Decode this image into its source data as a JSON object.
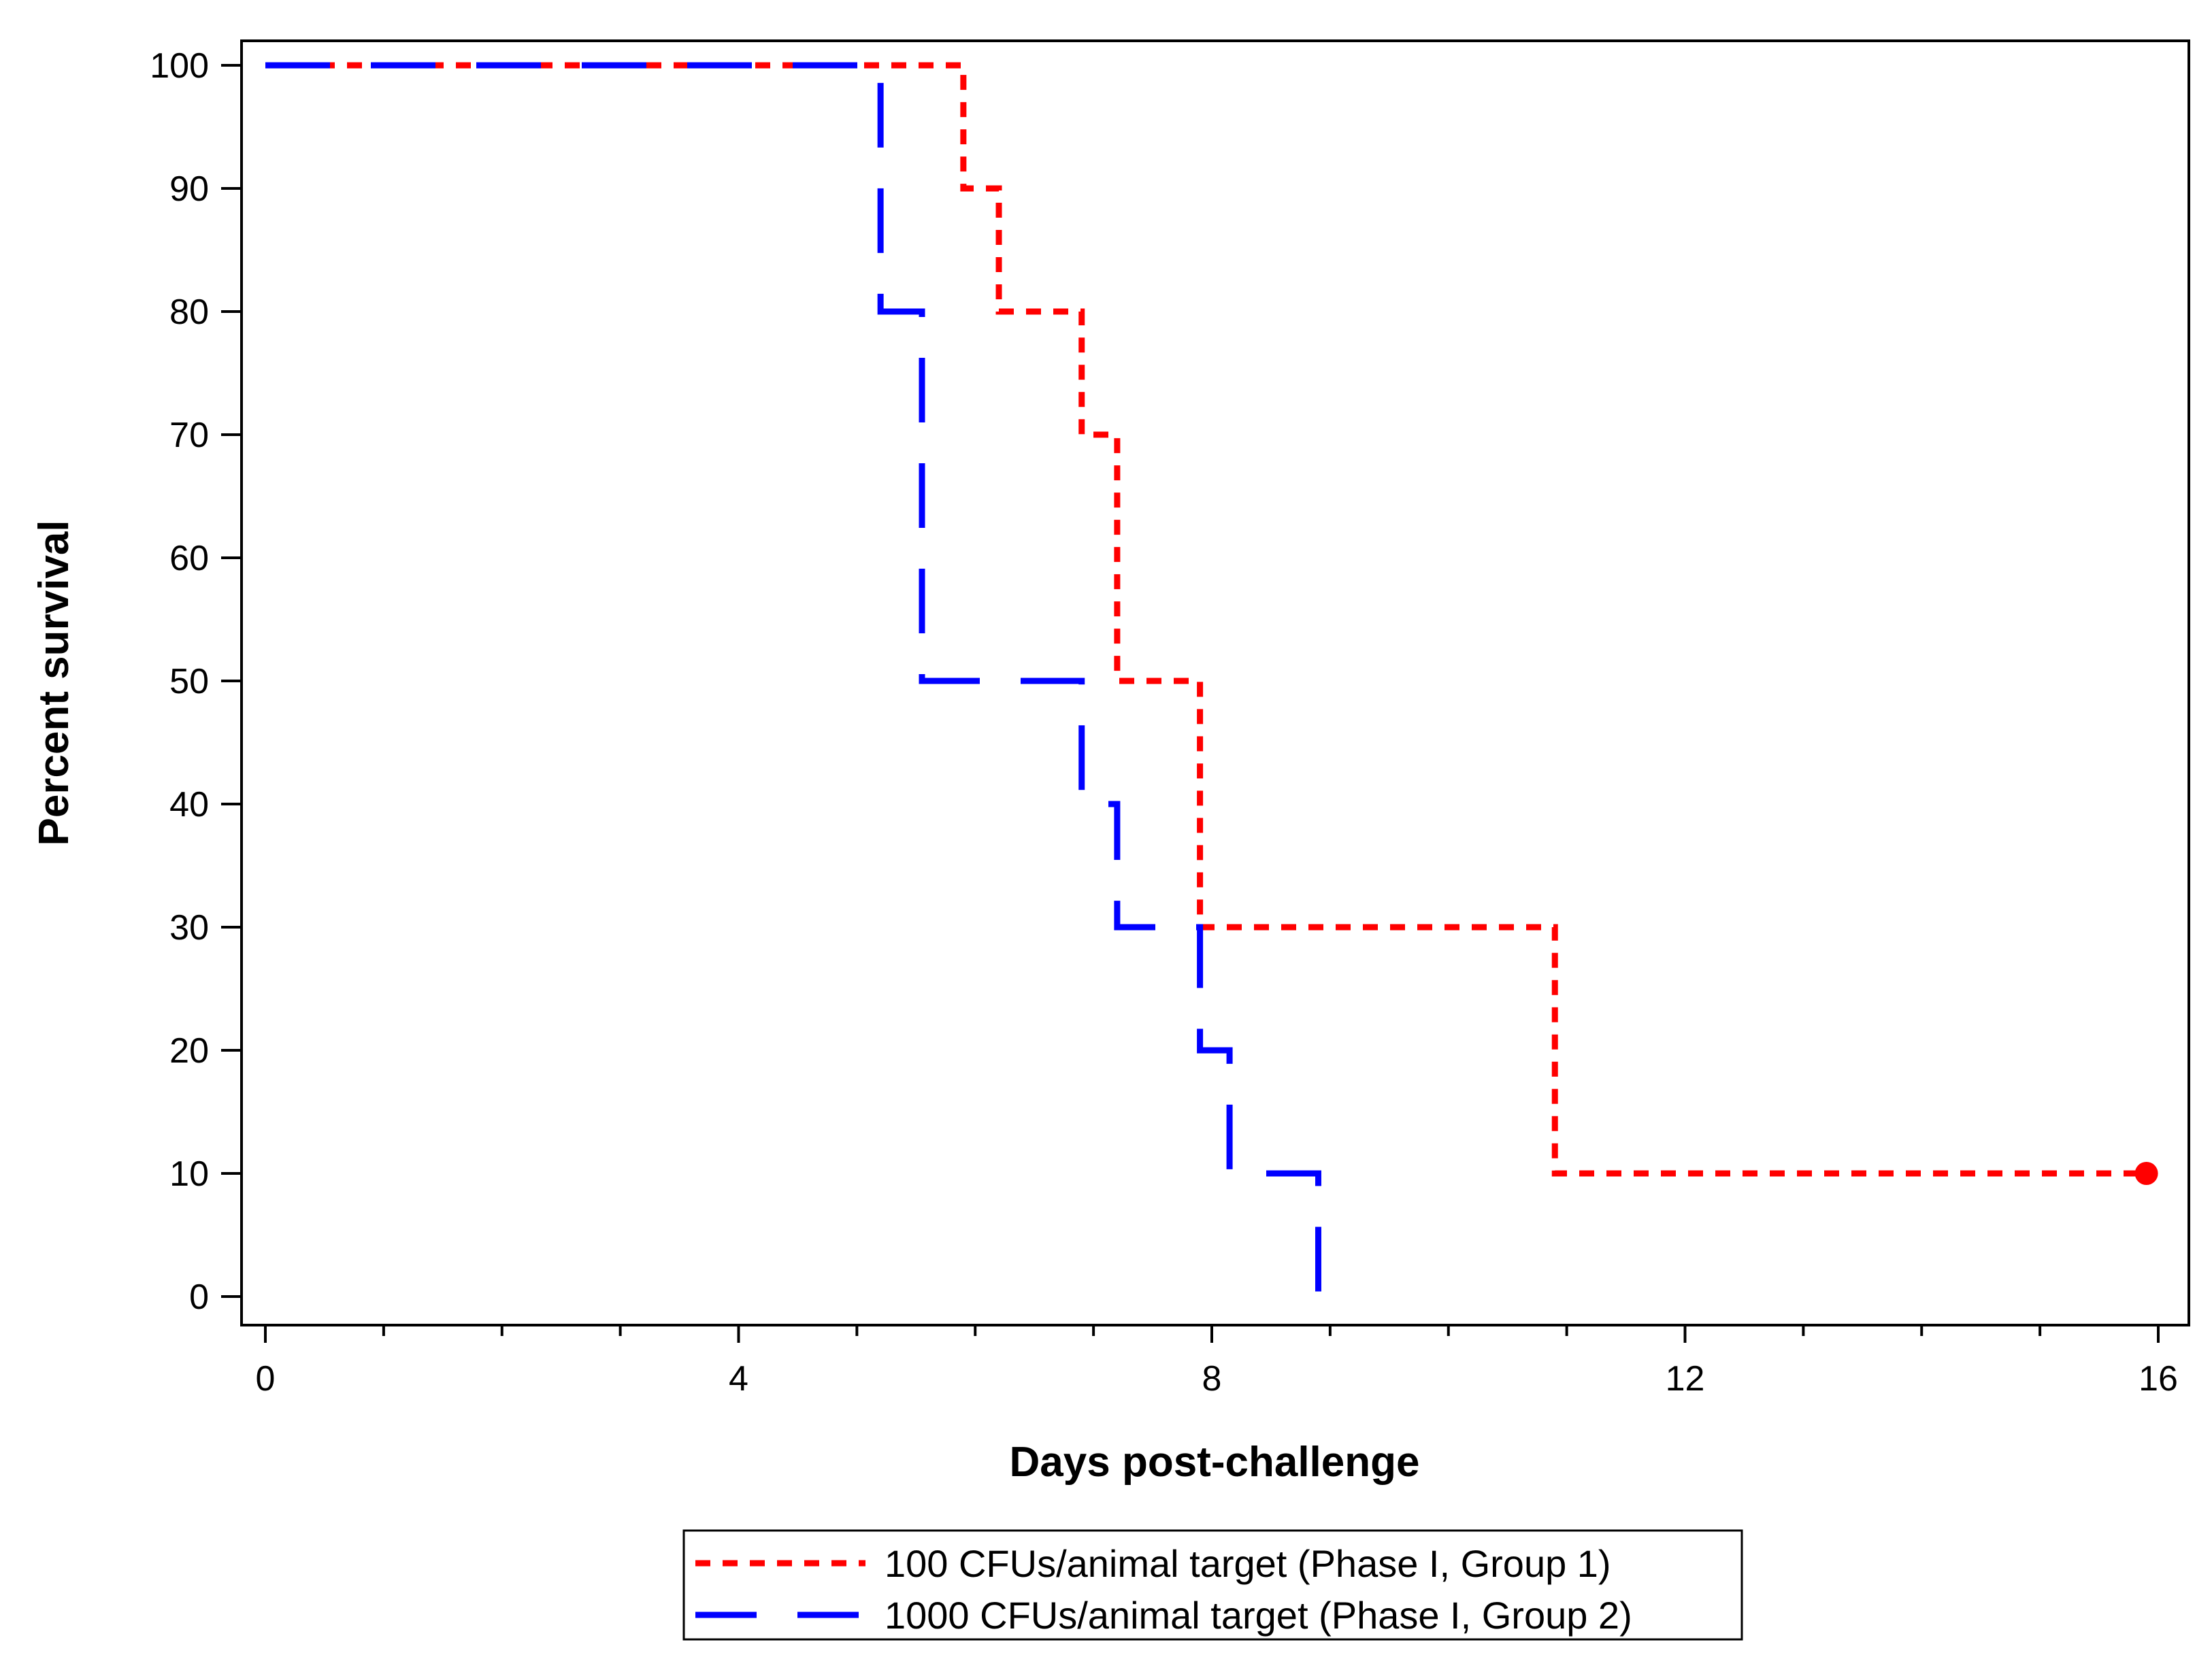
{
  "chart_data": {
    "type": "line",
    "subtype": "kaplan-meier step",
    "xlabel": "Days post-challenge",
    "ylabel": "Percent survival",
    "xlim": [
      0,
      16.2
    ],
    "ylim": [
      0,
      100
    ],
    "x_major_ticks": [
      0,
      4,
      8,
      12,
      16
    ],
    "x_minor_ticks": [
      1,
      2,
      3,
      5,
      6,
      7,
      9,
      10,
      11,
      13,
      14,
      15
    ],
    "y_ticks": [
      0,
      10,
      20,
      30,
      40,
      50,
      60,
      70,
      80,
      90,
      100
    ],
    "grid": false,
    "legend_position": "bottom",
    "series": [
      {
        "name": "100 CFUs/animal target (Phase I, Group 1)",
        "color": "#ff0000",
        "line_style": "short-dash",
        "x": [
          0,
          5.9,
          6.2,
          6.9,
          7.2,
          7.9,
          10.9,
          15.9
        ],
        "y": [
          100,
          90,
          80,
          70,
          50,
          30,
          10,
          10
        ],
        "censored": [
          {
            "x": 15.9,
            "y": 10
          }
        ]
      },
      {
        "name": "1000 CFUs/animal target (Phase I, Group 2)",
        "color": "#0000ff",
        "line_style": "long-dash",
        "x": [
          0,
          5.2,
          5.55,
          6.9,
          7.2,
          7.9,
          8.15,
          8.9
        ],
        "y": [
          100,
          80,
          50,
          40,
          30,
          20,
          10,
          0
        ],
        "censored": []
      }
    ]
  }
}
